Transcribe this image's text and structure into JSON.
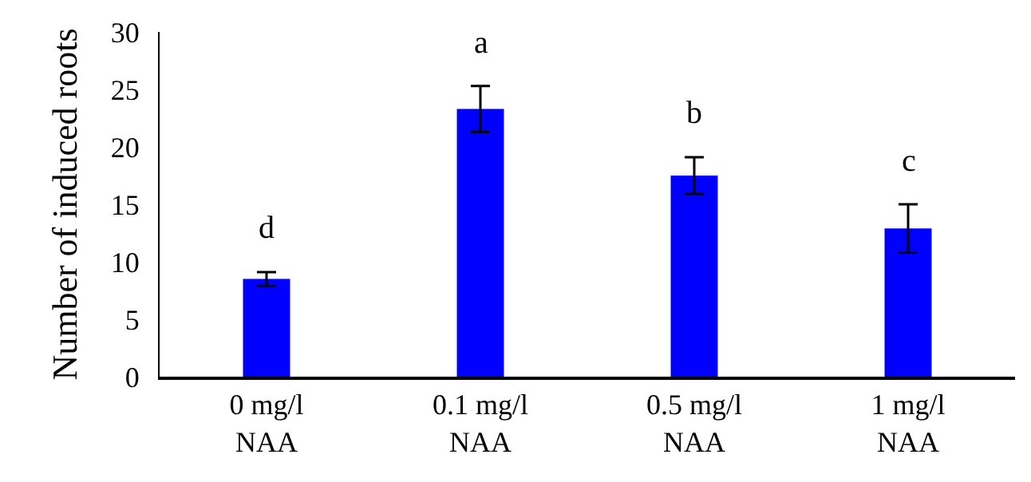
{
  "chart_data": {
    "type": "bar",
    "ylabel": "Number of induced roots",
    "categories": [
      "0 mg/l\nNAA",
      "0.1 mg/l\nNAA",
      "0.5 mg/l\nNAA",
      "1 mg/l\nNAA"
    ],
    "values": [
      8.5,
      23.3,
      17.5,
      12.9
    ],
    "errors": [
      0.6,
      2.0,
      1.6,
      2.1
    ],
    "color": "#0000ff",
    "ylim": [
      0,
      30
    ],
    "yticks": [
      0,
      5,
      10,
      15,
      20,
      25,
      30
    ],
    "grid": false,
    "annotations": [
      "d",
      "a",
      "b",
      "c"
    ]
  }
}
